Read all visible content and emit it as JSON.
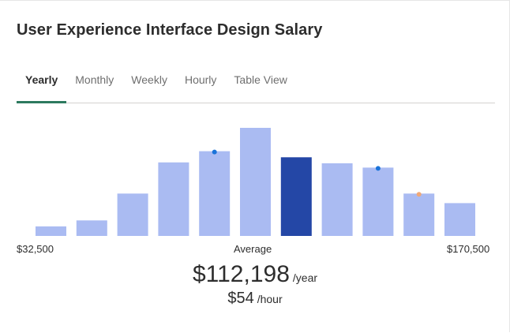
{
  "title": "User Experience Interface Design Salary",
  "tabs": [
    {
      "label": "Yearly",
      "active": true
    },
    {
      "label": "Monthly",
      "active": false
    },
    {
      "label": "Weekly",
      "active": false
    },
    {
      "label": "Hourly",
      "active": false
    },
    {
      "label": "Table View",
      "active": false
    }
  ],
  "colors": {
    "bar": "#aabbf2",
    "bar_highlight": "#2447a6",
    "tab_underline": "#2d7a5f",
    "marker_blue": "#1a73d9",
    "marker_orange": "#f0a878"
  },
  "chart_data": {
    "type": "bar",
    "x_range": [
      "$32,500",
      "$170,500"
    ],
    "average_label": "Average",
    "values": [
      11,
      18,
      49,
      85,
      98,
      125,
      91,
      84,
      79,
      49,
      38
    ],
    "highlight_index": 6,
    "markers": [
      {
        "bar_index": 4,
        "color": "blue"
      },
      {
        "bar_index": 8,
        "color": "blue"
      },
      {
        "bar_index": 9,
        "color": "orange"
      }
    ],
    "ylim": [
      0,
      125
    ]
  },
  "average": {
    "yearly_value": "$112,198",
    "yearly_unit": "/year",
    "hourly_value": "$54",
    "hourly_unit": "/hour"
  }
}
